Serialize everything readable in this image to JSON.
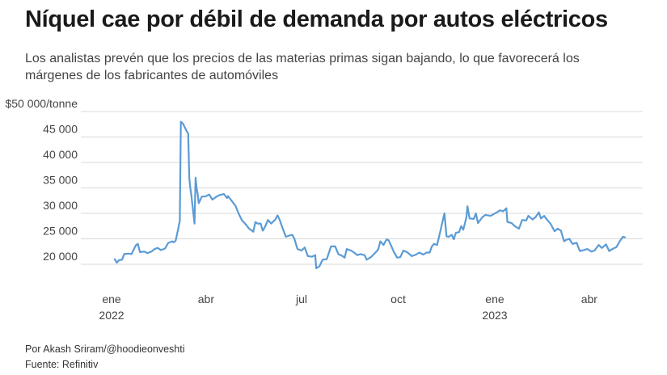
{
  "title": "Níquel cae por débil de demanda por autos eléctricos",
  "subtitle": "Los analistas prevén que los precios de las materias primas sigan bajando, lo que favorecerá los márgenes de los fabricantes de automóviles",
  "credits": {
    "author": "Por Akash Sriram/@hoodieonveshti",
    "source": "Fuente: Refinitiv"
  },
  "colors": {
    "line": "#5b9bd5",
    "grid": "#d9d9d9",
    "text": "#444444"
  },
  "chart_data": {
    "type": "line",
    "title": "Níquel cae por débil de demanda por autos eléctricos",
    "ylabel": "",
    "xlabel": "",
    "y_unit": "$/tonne",
    "ylim": [
      20000,
      50000
    ],
    "y_ticks": [
      {
        "value": 20000,
        "label": "20 000"
      },
      {
        "value": 25000,
        "label": "25 000"
      },
      {
        "value": 30000,
        "label": "30 000"
      },
      {
        "value": 35000,
        "label": "35 000"
      },
      {
        "value": 40000,
        "label": "40 000"
      },
      {
        "value": 45000,
        "label": "45 000"
      },
      {
        "value": 50000,
        "label": "$50 000/tonne"
      }
    ],
    "x_ticks": [
      {
        "date": "2022-01-01",
        "label": "ene",
        "year": "2022"
      },
      {
        "date": "2022-04-01",
        "label": "abr",
        "year": ""
      },
      {
        "date": "2022-07-01",
        "label": "jul",
        "year": ""
      },
      {
        "date": "2022-10-01",
        "label": "oct",
        "year": ""
      },
      {
        "date": "2023-01-01",
        "label": "ene",
        "year": "2023"
      },
      {
        "date": "2023-04-01",
        "label": "abr",
        "year": ""
      }
    ],
    "grid": true,
    "legend": "none",
    "series": [
      {
        "points": [
          [
            "2022-01-04",
            21000
          ],
          [
            "2022-01-06",
            20300
          ],
          [
            "2022-01-08",
            20800
          ],
          [
            "2022-01-11",
            20900
          ],
          [
            "2022-01-13",
            22000
          ],
          [
            "2022-01-17",
            22100
          ],
          [
            "2022-01-20",
            22000
          ],
          [
            "2022-01-24",
            23700
          ],
          [
            "2022-01-26",
            24000
          ],
          [
            "2022-01-28",
            22400
          ],
          [
            "2022-02-01",
            22500
          ],
          [
            "2022-02-04",
            22200
          ],
          [
            "2022-02-08",
            22500
          ],
          [
            "2022-02-11",
            23000
          ],
          [
            "2022-02-14",
            23200
          ],
          [
            "2022-02-17",
            22800
          ],
          [
            "2022-02-21",
            23100
          ],
          [
            "2022-02-24",
            24200
          ],
          [
            "2022-02-28",
            24500
          ],
          [
            "2022-03-01",
            24300
          ],
          [
            "2022-03-03",
            24600
          ],
          [
            "2022-03-05",
            26500
          ],
          [
            "2022-03-07",
            28500
          ],
          [
            "2022-03-08",
            48000
          ],
          [
            "2022-03-10",
            47600
          ],
          [
            "2022-03-14",
            46000
          ],
          [
            "2022-03-15",
            45600
          ],
          [
            "2022-03-16",
            37000
          ],
          [
            "2022-03-17",
            35000
          ],
          [
            "2022-03-18",
            33500
          ],
          [
            "2022-03-21",
            28000
          ],
          [
            "2022-03-22",
            37000
          ],
          [
            "2022-03-23",
            35000
          ],
          [
            "2022-03-24",
            33800
          ],
          [
            "2022-03-25",
            32000
          ],
          [
            "2022-03-28",
            33300
          ],
          [
            "2022-03-31",
            33300
          ],
          [
            "2022-04-04",
            33700
          ],
          [
            "2022-04-07",
            32700
          ],
          [
            "2022-04-11",
            33300
          ],
          [
            "2022-04-14",
            33600
          ],
          [
            "2022-04-18",
            33800
          ],
          [
            "2022-04-21",
            33000
          ],
          [
            "2022-04-22",
            33400
          ],
          [
            "2022-04-26",
            32300
          ],
          [
            "2022-04-29",
            31500
          ],
          [
            "2022-05-02",
            30000
          ],
          [
            "2022-05-05",
            28700
          ],
          [
            "2022-05-09",
            27800
          ],
          [
            "2022-05-12",
            27000
          ],
          [
            "2022-05-16",
            26400
          ],
          [
            "2022-05-18",
            28300
          ],
          [
            "2022-05-20",
            28000
          ],
          [
            "2022-05-23",
            28000
          ],
          [
            "2022-05-25",
            26600
          ],
          [
            "2022-05-27",
            27300
          ],
          [
            "2022-05-30",
            28700
          ],
          [
            "2022-06-02",
            28000
          ],
          [
            "2022-06-06",
            28800
          ],
          [
            "2022-06-08",
            29600
          ],
          [
            "2022-06-10",
            28800
          ],
          [
            "2022-06-13",
            27000
          ],
          [
            "2022-06-16",
            25400
          ],
          [
            "2022-06-20",
            25700
          ],
          [
            "2022-06-22",
            25800
          ],
          [
            "2022-06-24",
            25100
          ],
          [
            "2022-06-27",
            23000
          ],
          [
            "2022-07-01",
            22700
          ],
          [
            "2022-07-04",
            23300
          ],
          [
            "2022-07-07",
            21600
          ],
          [
            "2022-07-11",
            21500
          ],
          [
            "2022-07-14",
            21800
          ],
          [
            "2022-07-15",
            19200
          ],
          [
            "2022-07-18",
            19600
          ],
          [
            "2022-07-21",
            20900
          ],
          [
            "2022-07-25",
            21000
          ],
          [
            "2022-07-29",
            23500
          ],
          [
            "2022-08-02",
            23500
          ],
          [
            "2022-08-05",
            22000
          ],
          [
            "2022-08-09",
            21600
          ],
          [
            "2022-08-11",
            21300
          ],
          [
            "2022-08-13",
            23000
          ],
          [
            "2022-08-17",
            22700
          ],
          [
            "2022-08-20",
            22300
          ],
          [
            "2022-08-23",
            21800
          ],
          [
            "2022-08-26",
            22000
          ],
          [
            "2022-08-30",
            21800
          ],
          [
            "2022-09-01",
            20900
          ],
          [
            "2022-09-05",
            21400
          ],
          [
            "2022-09-08",
            22000
          ],
          [
            "2022-09-12",
            22900
          ],
          [
            "2022-09-14",
            24500
          ],
          [
            "2022-09-17",
            23800
          ],
          [
            "2022-09-20",
            24900
          ],
          [
            "2022-09-22",
            24700
          ],
          [
            "2022-09-27",
            22400
          ],
          [
            "2022-09-30",
            21300
          ],
          [
            "2022-10-03",
            21400
          ],
          [
            "2022-10-06",
            22700
          ],
          [
            "2022-10-10",
            22300
          ],
          [
            "2022-10-14",
            21600
          ],
          [
            "2022-10-18",
            21900
          ],
          [
            "2022-10-21",
            22300
          ],
          [
            "2022-10-25",
            21900
          ],
          [
            "2022-10-28",
            22300
          ],
          [
            "2022-10-31",
            22300
          ],
          [
            "2022-11-02",
            23500
          ],
          [
            "2022-11-04",
            24000
          ],
          [
            "2022-11-07",
            23800
          ],
          [
            "2022-11-09",
            25500
          ],
          [
            "2022-11-11",
            27300
          ],
          [
            "2022-11-14",
            30000
          ],
          [
            "2022-11-16",
            25500
          ],
          [
            "2022-11-18",
            25400
          ],
          [
            "2022-11-21",
            25800
          ],
          [
            "2022-11-23",
            24900
          ],
          [
            "2022-11-25",
            26200
          ],
          [
            "2022-11-28",
            26300
          ],
          [
            "2022-11-30",
            27500
          ],
          [
            "2022-12-02",
            26800
          ],
          [
            "2022-12-05",
            29200
          ],
          [
            "2022-12-06",
            31400
          ],
          [
            "2022-12-08",
            29000
          ],
          [
            "2022-12-12",
            28900
          ],
          [
            "2022-12-14",
            30000
          ],
          [
            "2022-12-16",
            28100
          ],
          [
            "2022-12-20",
            29200
          ],
          [
            "2022-12-23",
            29700
          ],
          [
            "2022-12-28",
            29500
          ],
          [
            "2023-01-03",
            30200
          ],
          [
            "2023-01-06",
            30600
          ],
          [
            "2023-01-09",
            30400
          ],
          [
            "2023-01-12",
            31000
          ],
          [
            "2023-01-13",
            28300
          ],
          [
            "2023-01-17",
            28100
          ],
          [
            "2023-01-20",
            27500
          ],
          [
            "2023-01-24",
            27000
          ],
          [
            "2023-01-27",
            28700
          ],
          [
            "2023-01-31",
            28600
          ],
          [
            "2023-02-02",
            29500
          ],
          [
            "2023-02-06",
            28800
          ],
          [
            "2023-02-09",
            29300
          ],
          [
            "2023-02-12",
            30200
          ],
          [
            "2023-02-14",
            29000
          ],
          [
            "2023-02-17",
            29500
          ],
          [
            "2023-02-20",
            28700
          ],
          [
            "2023-02-23",
            28000
          ],
          [
            "2023-02-27",
            26500
          ],
          [
            "2023-03-02",
            27000
          ],
          [
            "2023-03-05",
            26600
          ],
          [
            "2023-03-08",
            24500
          ],
          [
            "2023-03-10",
            24800
          ],
          [
            "2023-03-13",
            25000
          ],
          [
            "2023-03-16",
            24000
          ],
          [
            "2023-03-20",
            24200
          ],
          [
            "2023-03-23",
            22600
          ],
          [
            "2023-03-27",
            22800
          ],
          [
            "2023-03-30",
            23000
          ],
          [
            "2023-04-03",
            22500
          ],
          [
            "2023-04-06",
            22700
          ],
          [
            "2023-04-10",
            23800
          ],
          [
            "2023-04-13",
            23200
          ],
          [
            "2023-04-17",
            23900
          ],
          [
            "2023-04-20",
            22600
          ],
          [
            "2023-04-24",
            23100
          ],
          [
            "2023-04-27",
            23400
          ],
          [
            "2023-04-30",
            24500
          ],
          [
            "2023-05-03",
            25400
          ],
          [
            "2023-05-05",
            25300
          ]
        ]
      }
    ]
  }
}
